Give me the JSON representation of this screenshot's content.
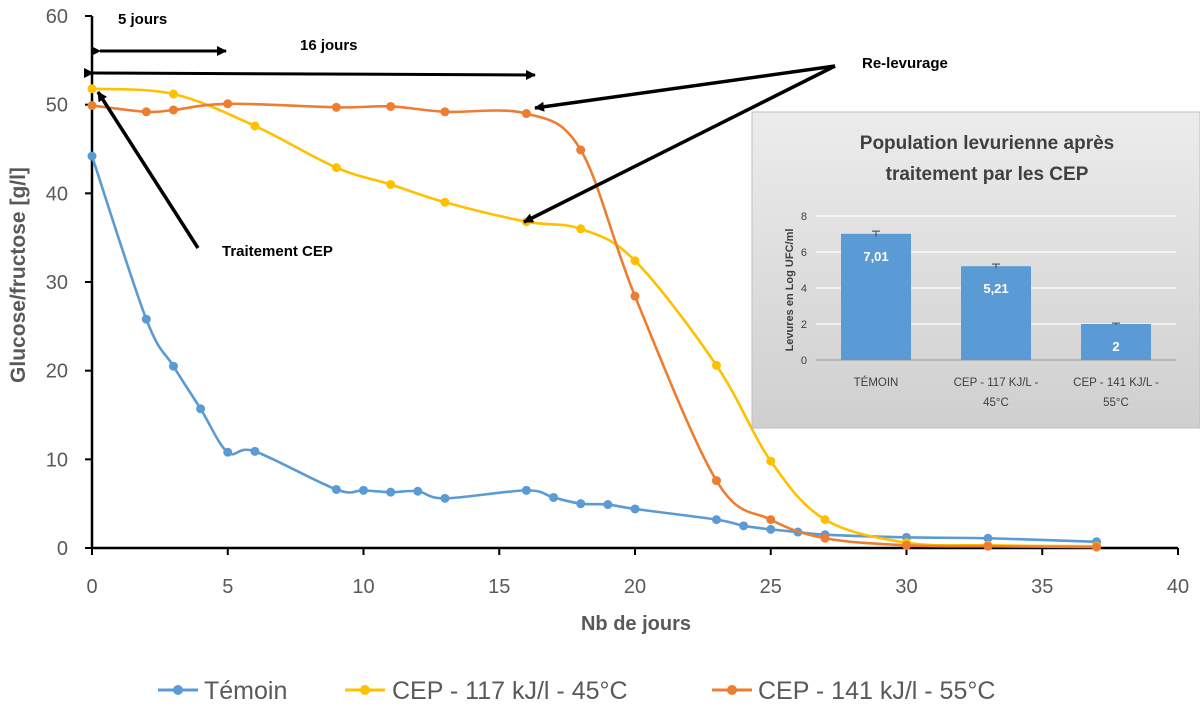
{
  "chart_data": [
    {
      "type": "line",
      "xlabel": "Nb de jours",
      "ylabel": "Glucose/fructose  [g/l]",
      "xlim": [
        0,
        40
      ],
      "ylim": [
        0,
        60
      ],
      "xticks": [
        0,
        5,
        10,
        15,
        20,
        25,
        30,
        35,
        40
      ],
      "yticks": [
        0,
        10,
        20,
        30,
        40,
        50,
        60
      ],
      "grid": false,
      "legend_position": "bottom",
      "series": [
        {
          "name": "Témoin",
          "color": "#5B9BD5",
          "points": [
            [
              0,
              44.2
            ],
            [
              2,
              25.8
            ],
            [
              3,
              20.5
            ],
            [
              4,
              15.7
            ],
            [
              5,
              10.8
            ],
            [
              6,
              10.9
            ],
            [
              9,
              6.6
            ],
            [
              10,
              6.5
            ],
            [
              11,
              6.3
            ],
            [
              12,
              6.4
            ],
            [
              13,
              5.6
            ],
            [
              16,
              6.5
            ],
            [
              17,
              5.7
            ],
            [
              18,
              5.0
            ],
            [
              19,
              4.9
            ],
            [
              20,
              4.4
            ],
            [
              23,
              3.2
            ],
            [
              24,
              2.5
            ],
            [
              25,
              2.1
            ],
            [
              26,
              1.8
            ],
            [
              27,
              1.5
            ],
            [
              30,
              1.2
            ],
            [
              33,
              1.1
            ],
            [
              37,
              0.7
            ]
          ]
        },
        {
          "name": "CEP - 117 kJ/l - 45°C",
          "color": "#FFC000",
          "points": [
            [
              0,
              51.8
            ],
            [
              3,
              51.2
            ],
            [
              6,
              47.6
            ],
            [
              9,
              42.9
            ],
            [
              11,
              41.0
            ],
            [
              13,
              39.0
            ],
            [
              16,
              36.8
            ],
            [
              18,
              36.0
            ],
            [
              20,
              32.4
            ],
            [
              23,
              20.6
            ],
            [
              25,
              9.8
            ],
            [
              27,
              3.2
            ],
            [
              30,
              0.6
            ],
            [
              33,
              0.3
            ],
            [
              37,
              0.2
            ]
          ]
        },
        {
          "name": "CEP - 141 kJ/l - 55°C",
          "color": "#ED7D31",
          "points": [
            [
              0,
              49.9
            ],
            [
              2,
              49.2
            ],
            [
              3,
              49.4
            ],
            [
              5,
              50.1
            ],
            [
              9,
              49.7
            ],
            [
              11,
              49.8
            ],
            [
              13,
              49.2
            ],
            [
              16,
              49.0
            ],
            [
              18,
              44.9
            ],
            [
              20,
              28.4
            ],
            [
              23,
              7.6
            ],
            [
              25,
              3.2
            ],
            [
              27,
              1.1
            ],
            [
              30,
              0.3
            ],
            [
              33,
              0.2
            ],
            [
              37,
              0.1
            ]
          ]
        }
      ],
      "annotations": {
        "five_days": "5 jours",
        "sixteen_days": "16 jours",
        "relevurage": "Re-levurage",
        "traitement": "Traitement CEP"
      }
    },
    {
      "type": "bar",
      "title_line1": "Population levurienne après",
      "title_line2": "traitement par les CEP",
      "ylabel": "Levures en Log UFC/ml",
      "ylim": [
        0,
        8
      ],
      "yticks": [
        0,
        2,
        4,
        6,
        8
      ],
      "grid": true,
      "bar_color": "#5B9BD5",
      "categories": [
        {
          "line1": "TÉMOIN",
          "line2": ""
        },
        {
          "line1": "CEP - 117 KJ/L -",
          "line2": "45°C"
        },
        {
          "line1": "CEP - 141 KJ/L -",
          "line2": "55°C"
        }
      ],
      "values": [
        7.01,
        5.21,
        2
      ],
      "value_labels": [
        "7,01",
        "5,21",
        "2"
      ],
      "errors": [
        0.15,
        0.12,
        0.05
      ]
    }
  ]
}
